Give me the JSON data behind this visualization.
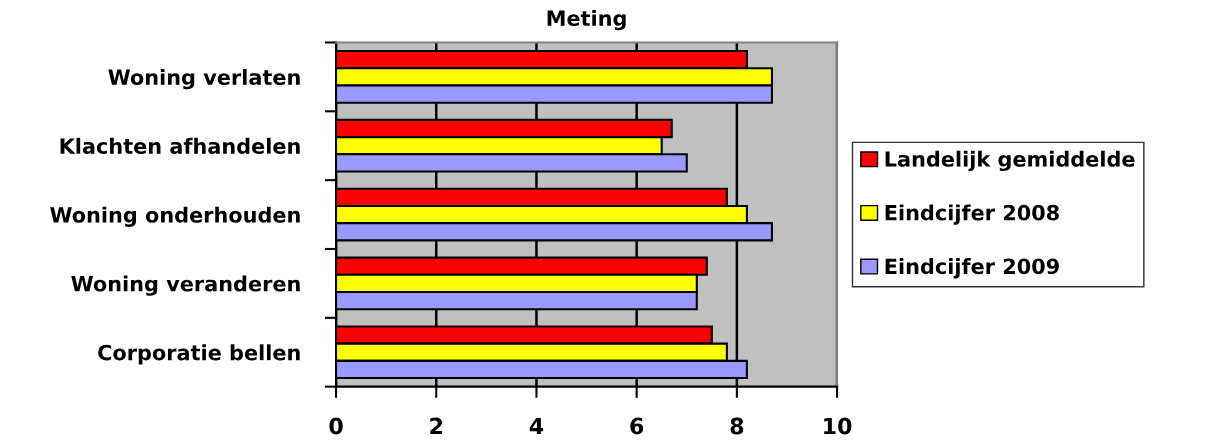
{
  "chart_data": {
    "type": "bar",
    "orientation": "horizontal",
    "title": "Meting",
    "categories": [
      "Woning verlaten",
      "Klachten afhandelen",
      "Woning onderhouden",
      "Woning veranderen",
      "Corporatie bellen"
    ],
    "series": [
      {
        "name": "Landelijk gemiddelde",
        "color": "#ff0000",
        "values": [
          8.2,
          6.7,
          7.8,
          7.4,
          7.5
        ]
      },
      {
        "name": "Eindcijfer 2008",
        "color": "#ffff00",
        "values": [
          8.7,
          6.5,
          8.2,
          7.2,
          7.8
        ]
      },
      {
        "name": "Eindcijfer 2009",
        "color": "#9999ff",
        "values": [
          8.7,
          7.0,
          8.7,
          7.2,
          8.2
        ]
      }
    ],
    "xlim": [
      0,
      10
    ],
    "xticks": [
      0,
      2,
      4,
      6,
      8,
      10
    ],
    "grid": "x",
    "legend": "right"
  }
}
